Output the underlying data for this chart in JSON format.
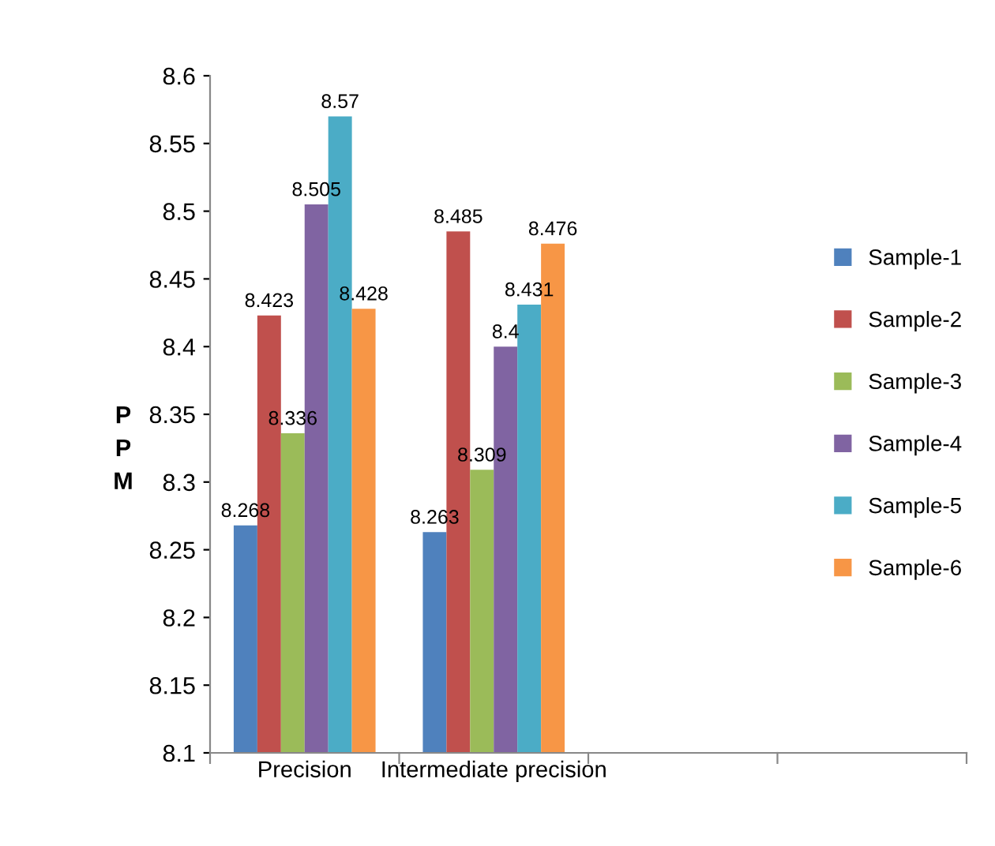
{
  "chart_data": {
    "type": "bar",
    "ylabel": "P\nP\nM",
    "categories": [
      "Precision",
      "Intermediate precision",
      null,
      null
    ],
    "series": [
      {
        "name": "Sample-1",
        "color": "#4f81bd",
        "values": [
          8.268,
          8.263,
          null,
          null
        ]
      },
      {
        "name": "Sample-2",
        "color": "#c0504d",
        "values": [
          8.423,
          8.485,
          null,
          null
        ]
      },
      {
        "name": "Sample-3",
        "color": "#9bbb59",
        "values": [
          8.336,
          8.309,
          null,
          null
        ]
      },
      {
        "name": "Sample-4",
        "color": "#8064a2",
        "values": [
          8.505,
          8.4,
          null,
          null
        ]
      },
      {
        "name": "Sample-5",
        "color": "#4bacc6",
        "values": [
          8.57,
          8.431,
          null,
          null
        ]
      },
      {
        "name": "Sample-6",
        "color": "#f79646",
        "values": [
          8.428,
          8.476,
          null,
          null
        ]
      }
    ],
    "ylim": [
      8.1,
      8.6
    ],
    "yticks": [
      8.1,
      8.15,
      8.2,
      8.25,
      8.3,
      8.35,
      8.4,
      8.45,
      8.5,
      8.55,
      8.6
    ],
    "data_labels": true,
    "grid": false,
    "legend": "right"
  }
}
